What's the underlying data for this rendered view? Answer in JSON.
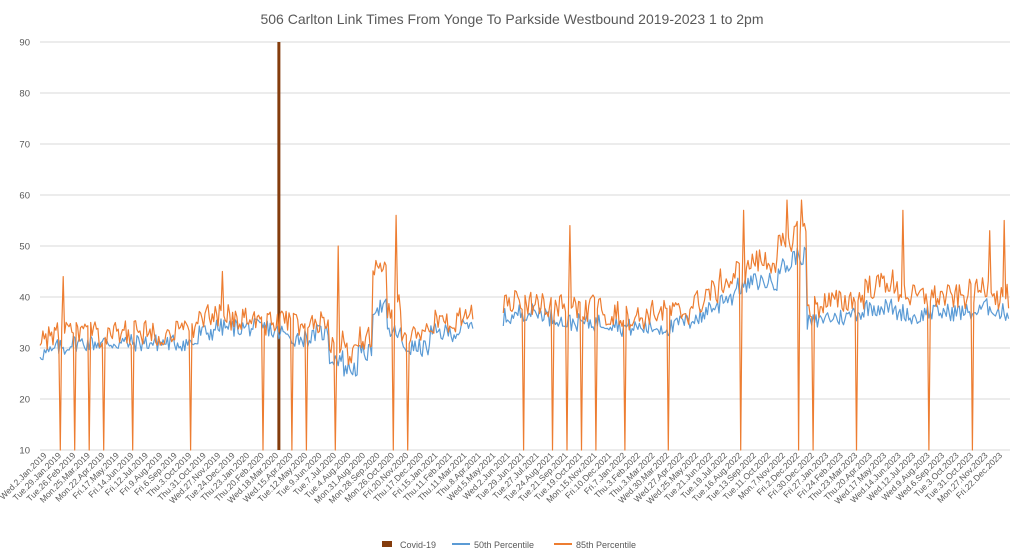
{
  "chart_data": {
    "type": "line",
    "title": "506 Carlton Link Times From Yonge To Parkside Westbound 2019-2023 1 to 2pm",
    "xlabel": "",
    "ylabel": "",
    "ylim": [
      10,
      90
    ],
    "yticks": [
      10,
      20,
      30,
      40,
      50,
      60,
      70,
      80,
      90
    ],
    "grid": true,
    "legend_position": "bottom",
    "categories": [
      "Wed.2.Jan.2019",
      "Tue.29.Jan.2019",
      "Tue.26.Feb.2019",
      "Mon.25.Mar.2019",
      "Mon.22.Apr.2019",
      "Fri.17.May.2019",
      "Fri.14.Jun.2019",
      "Fri.12.Jul.2019",
      "Fri.9.Aug.2019",
      "Fri.6.Sep.2019",
      "Thu.3.Oct.2019",
      "Thu.31.Oct.2019",
      "Wed.27.Nov.2019",
      "Tue.24.Dec.2019",
      "Thu.23.Jan.2020",
      "Thu.20.Feb.2020",
      "Wed.18.Mar.2020",
      "Wed.15.Apr.2020",
      "Tue.12.May.2020",
      "Tue.9.Jun.2020",
      "Tue.7.Jul.2020",
      "Tue.4.Aug.2020",
      "Mon.31.Aug.2020",
      "Mon.28.Sep.2020",
      "Mon.26.Oct.2020",
      "Fri.20.Nov.2020",
      "Thu.17.Dec.2020",
      "Fri.15.Jan.2021",
      "Thu.11.Feb.2021",
      "Thu.11.Mar.2021",
      "Thu.8.Apr.2021",
      "Wed.5.May.2021",
      "Wed.2.Jun.2021",
      "Tue.29.Jun.2021",
      "Tue.27.Jul.2021",
      "Tue.24.Aug.2021",
      "Tue.21.Sep.2021",
      "Tue.19.Oct.2021",
      "Mon.15.Nov.2021",
      "Fri.10.Dec.2021",
      "Fri.7.Jan.2022",
      "Thu.3.Feb.2022",
      "Thu.3.Mar.2022",
      "Wed.30.Mar.2022",
      "Wed.27.Apr.2022",
      "Wed.25.May.2022",
      "Tue.21.Jun.2022",
      "Tue.19.Jul.2022",
      "Tue.16.Aug.2022",
      "Tue.13.Sep.2022",
      "Tue.11.Oct.2022",
      "Mon.7.Nov.2022",
      "Fri.2.Dec.2022",
      "Fri.30.Dec.2022",
      "Fri.27.Jan.2023",
      "Fri.24.Feb.2023",
      "Thu.23.Mar.2023",
      "Thu.20.Apr.2023",
      "Wed.17.May.2023",
      "Wed.14.Jun.2023",
      "Wed.12.Jul.2023",
      "Wed.9.Aug.2023",
      "Wed.6.Sep.2023",
      "Tue.3.Oct.2023",
      "Tue.31.Oct.2023",
      "Mon.27.Nov.2023",
      "Fri.22.Dec.2023"
    ],
    "series": [
      {
        "name": "Covid-19",
        "kind": "bar",
        "color": "#843c0c",
        "at_category": "Wed.18.Mar.2020",
        "value": 90
      },
      {
        "name": "50th Percentile",
        "color": "#5b9bd5",
        "values": [
          29,
          30,
          31,
          31,
          31,
          31,
          31,
          31,
          31,
          31,
          31,
          33,
          34,
          34,
          34,
          34,
          33,
          32,
          32,
          33,
          28,
          26,
          29,
          38,
          33,
          30,
          30,
          33,
          33,
          34,
          null,
          null,
          36,
          37,
          37,
          36,
          35,
          35,
          35,
          35,
          34,
          34,
          34,
          34,
          35,
          36,
          38,
          40,
          42,
          43,
          43,
          46,
          48,
          35,
          36,
          36,
          37,
          38,
          38,
          37,
          36,
          37,
          37,
          37,
          37,
          38,
          37
        ]
      },
      {
        "name": "85th Percentile",
        "color": "#ed7d31",
        "values": [
          32,
          33,
          33,
          33,
          32,
          33,
          33,
          33,
          33,
          33,
          34,
          36,
          36,
          36,
          36,
          35,
          35,
          35,
          34,
          35,
          31,
          29,
          32,
          45,
          38,
          33,
          33,
          35,
          35,
          36,
          null,
          null,
          39,
          39,
          39,
          38,
          38,
          37,
          38,
          37,
          36,
          36,
          37,
          37,
          37,
          39,
          41,
          43,
          45,
          47,
          47,
          50,
          53,
          38,
          39,
          39,
          40,
          42,
          43,
          41,
          40,
          40,
          40,
          40,
          41,
          42,
          40
        ]
      }
    ],
    "dips_85th": [
      "Tue.29.Jan.2019",
      "Tue.26.Feb.2019",
      "Mon.25.Mar.2019",
      "Mon.22.Apr.2019",
      "Fri.14.Jun.2019",
      "Thu.3.Oct.2019",
      "Thu.20.Feb.2020",
      "Wed.15.Apr.2020",
      "Tue.12.May.2020",
      "Tue.7.Jul.2020",
      "Mon.26.Oct.2020",
      "Fri.20.Nov.2020",
      "Thu.8.Apr.2021",
      "Tue.29.Jun.2021",
      "Tue.24.Aug.2021",
      "Tue.21.Sep.2021",
      "Tue.19.Oct.2021",
      "Mon.15.Nov.2021",
      "Fri.7.Jan.2022",
      "Wed.30.Mar.2022",
      "Tue.16.Aug.2022",
      "Fri.2.Dec.2022",
      "Fri.30.Dec.2022",
      "Thu.23.Mar.2023",
      "Wed.9.Aug.2023",
      "Tue.31.Oct.2023"
    ],
    "spikes_85th": [
      [
        "Tue.29.Jan.2019",
        44
      ],
      [
        "Wed.27.Nov.2019",
        45
      ],
      [
        "Tue.7.Jul.2020",
        50
      ],
      [
        "Mon.26.Oct.2020",
        56
      ],
      [
        "Tue.21.Sep.2021",
        54
      ],
      [
        "Tue.16.Aug.2022",
        57
      ],
      [
        "Mon.7.Nov.2022",
        59
      ],
      [
        "Fri.2.Dec.2022",
        59
      ],
      [
        "Wed.14.Jun.2023",
        57
      ],
      [
        "Mon.27.Nov.2023",
        53
      ],
      [
        "Fri.22.Dec.2023",
        55
      ]
    ]
  }
}
